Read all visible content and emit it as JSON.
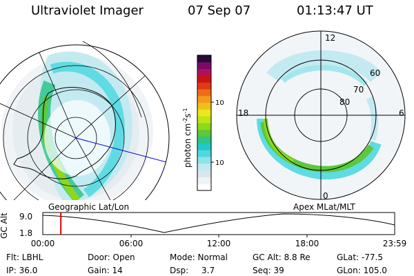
{
  "header": {
    "instrument": "Ultraviolet Imager",
    "date": "07 Sep 07",
    "time": "01:13:47 UT"
  },
  "geo_panel": {
    "label": "Geographic Lat/Lon"
  },
  "apex_panel": {
    "label": "Apex MLat/MLT",
    "mlt_labels": {
      "top": "12",
      "left": "18",
      "right": "6",
      "bottom": "0"
    },
    "mlat_labels": [
      "60",
      "70",
      "80"
    ]
  },
  "colorbar": {
    "unit": "photon cm",
    "unit_exp1": "-2",
    "unit_mid": "s",
    "unit_exp2": "-1",
    "ticks": [
      "100",
      "10"
    ],
    "colors": [
      "#ffffff",
      "#eef3f6",
      "#d9e6ec",
      "#bfe9ef",
      "#8fe3ea",
      "#4fd8e0",
      "#22c8c4",
      "#2ec48a",
      "#5cc83a",
      "#8cd81c",
      "#bfe418",
      "#e8e81a",
      "#f0c01a",
      "#f59a1a",
      "#ee6c18",
      "#e03a14",
      "#c81414",
      "#b0105a",
      "#7a0a6a",
      "#2a0a3a"
    ]
  },
  "timeline": {
    "axis_label": "GC Alt",
    "y_ticks": [
      "9.0",
      "1.8"
    ],
    "x_ticks": [
      "00:00",
      "06:00",
      "12:00",
      "18:00",
      "23:59"
    ],
    "current_time_fraction": 0.0513
  },
  "footer": {
    "flt": "Flt: LBHL",
    "ip": "IP: 36.0",
    "door": "Door: Open",
    "gain": "Gain: 14",
    "mode": "Mode: Normal",
    "dsp_label": "Dsp:",
    "dsp_value": "3.7",
    "gc_alt": "GC Alt: 8.8 Re",
    "seq": "Seq: 39",
    "glat": "GLat: -77.5",
    "glon": "GLon: 105.0"
  }
}
